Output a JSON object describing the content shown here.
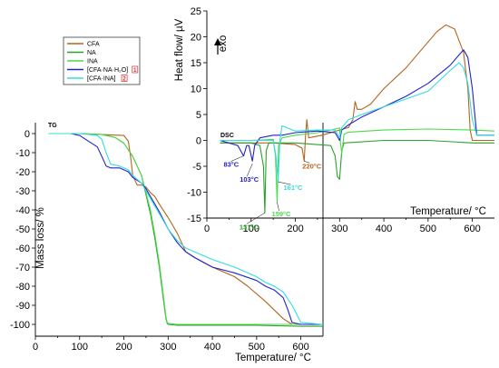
{
  "colors": {
    "CFA": "#b5651d",
    "NA": "#2ca02c",
    "INA": "#4dd94d",
    "CFA_NA_H2O": "#2222cc",
    "CFA_INA": "#33dddd",
    "marker_red": "#d62728"
  },
  "legend": {
    "items": [
      {
        "key": "CFA",
        "label": "CFA"
      },
      {
        "key": "NA",
        "label": "NA"
      },
      {
        "key": "INA",
        "label": "INA"
      },
      {
        "key": "CFA_NA_H2O",
        "label": "[CFA·NA·H₂O]",
        "badge": "1"
      },
      {
        "key": "CFA_INA",
        "label": "[CFA·INA]",
        "badge": "2"
      }
    ]
  },
  "chart_data": [
    {
      "type": "line",
      "panel": "TG",
      "tag": "TG",
      "xlabel": "Temperature/ °C",
      "ylabel": "Mass loss/ %",
      "xlim": [
        0,
        650
      ],
      "ylim": [
        -103,
        3
      ],
      "xticks": [
        0,
        100,
        200,
        300,
        400,
        500,
        600
      ],
      "yticks": [
        0,
        -10,
        -20,
        -30,
        -40,
        -50,
        -60,
        -70,
        -80,
        -90,
        -100
      ],
      "series": [
        {
          "name": "CFA",
          "key": "CFA",
          "x": [
            30,
            100,
            200,
            210,
            215,
            220,
            230,
            240,
            250,
            260,
            270,
            280,
            300,
            320,
            340,
            360,
            400,
            450,
            480,
            520,
            560,
            580,
            600,
            650
          ],
          "y": [
            0,
            0,
            -1,
            -4,
            -12,
            -22,
            -27,
            -27,
            -28,
            -31,
            -33,
            -37,
            -44,
            -52,
            -62,
            -65,
            -70,
            -75,
            -80,
            -88,
            -97,
            -100,
            -100,
            -100
          ]
        },
        {
          "name": "NA",
          "key": "NA",
          "x": [
            30,
            100,
            150,
            180,
            200,
            220,
            240,
            260,
            270,
            280,
            290,
            295,
            298,
            300,
            320,
            400,
            500,
            600,
            650
          ],
          "y": [
            0,
            0,
            -0.5,
            -2,
            -5,
            -12,
            -22,
            -42,
            -55,
            -70,
            -88,
            -97,
            -99.5,
            -100,
            -100.5,
            -100.5,
            -100.5,
            -101,
            -101
          ]
        },
        {
          "name": "INA",
          "key": "INA",
          "x": [
            30,
            100,
            150,
            180,
            200,
            220,
            240,
            260,
            270,
            280,
            290,
            295,
            298,
            300,
            320,
            400,
            500,
            600,
            650
          ],
          "y": [
            0,
            0,
            -0.5,
            -2,
            -5,
            -12,
            -22,
            -40,
            -53,
            -68,
            -86,
            -96,
            -99,
            -99.5,
            -100,
            -100,
            -100,
            -100,
            -100
          ]
        },
        {
          "name": "[CFA·NA·H₂O]",
          "key": "CFA_NA_H2O",
          "x": [
            30,
            80,
            100,
            120,
            140,
            150,
            160,
            170,
            190,
            210,
            220,
            240,
            250,
            260,
            270,
            280,
            300,
            320,
            340,
            360,
            400,
            450,
            500,
            520,
            540,
            560,
            570,
            580,
            600,
            650
          ],
          "y": [
            0,
            0,
            -1,
            -4,
            -7,
            -12,
            -17,
            -18,
            -18,
            -20,
            -23,
            -26,
            -29,
            -33,
            -37,
            -41,
            -50,
            -57,
            -62,
            -65,
            -70,
            -73,
            -77,
            -80,
            -82,
            -86,
            -92,
            -99,
            -100,
            -100
          ]
        },
        {
          "name": "[CFA·INA]",
          "key": "CFA_INA",
          "x": [
            30,
            100,
            140,
            150,
            160,
            170,
            190,
            210,
            220,
            240,
            250,
            260,
            270,
            280,
            300,
            320,
            340,
            360,
            400,
            450,
            500,
            520,
            540,
            560,
            580,
            600,
            650
          ],
          "y": [
            0,
            0,
            -1,
            -3,
            -10,
            -16,
            -17,
            -19,
            -22,
            -26,
            -30,
            -34,
            -38,
            -42,
            -50,
            -56,
            -60,
            -62,
            -66,
            -70,
            -75,
            -78,
            -80,
            -83,
            -90,
            -99,
            -100
          ]
        }
      ]
    },
    {
      "type": "line",
      "panel": "DSC",
      "tag": "DSC",
      "xlabel": "Temperature/ °C",
      "ylabel": "Heat flow/ µV",
      "exo_label": "exo",
      "xlim": [
        0,
        650
      ],
      "ylim": [
        -15,
        25
      ],
      "xticks": [
        0,
        100,
        200,
        300,
        400,
        500,
        600
      ],
      "yticks": [
        -15,
        -10,
        -5,
        0,
        5,
        10,
        15,
        20,
        25
      ],
      "annotations": [
        {
          "text": "83°C",
          "key": "CFA_NA_H2O",
          "x": 83,
          "y": -3
        },
        {
          "text": "103°C",
          "key": "CFA_NA_H2O",
          "x": 103,
          "y": -4.5
        },
        {
          "text": "131°C",
          "key": "NA",
          "x": 131,
          "y": -14
        },
        {
          "text": "159°C",
          "key": "INA",
          "x": 159,
          "y": -12
        },
        {
          "text": "161°C",
          "key": "CFA_INA",
          "x": 161,
          "y": -8
        },
        {
          "text": "220°C",
          "key": "CFA",
          "x": 220,
          "y": -4
        }
      ],
      "series": [
        {
          "name": "CFA",
          "key": "CFA",
          "x": [
            30,
            150,
            200,
            215,
            220,
            223,
            226,
            230,
            260,
            300,
            320,
            330,
            335,
            340,
            350,
            370,
            400,
            450,
            500,
            520,
            540,
            560,
            580,
            590,
            595,
            600,
            610,
            650
          ],
          "y": [
            -0.5,
            -0.5,
            -0.8,
            -1.5,
            -4,
            1,
            4,
            0.5,
            1,
            2,
            2.5,
            4,
            7.5,
            6,
            6,
            7,
            10,
            14,
            19,
            21,
            22.3,
            21.5,
            17,
            10,
            2,
            0,
            0,
            0
          ]
        },
        {
          "name": "NA",
          "key": "NA",
          "x": [
            30,
            100,
            120,
            128,
            131,
            134,
            140,
            200,
            280,
            290,
            295,
            300,
            305,
            310,
            400,
            500,
            600,
            650
          ],
          "y": [
            -0.5,
            -0.5,
            -1,
            -5,
            -14,
            -2,
            -0.5,
            -0.5,
            -1,
            -3,
            -7,
            -7.5,
            -2,
            -0.5,
            0,
            0,
            -0.5,
            -0.5
          ]
        },
        {
          "name": "INA",
          "key": "INA",
          "x": [
            30,
            100,
            150,
            155,
            159,
            162,
            170,
            200,
            250,
            280,
            295,
            300,
            302,
            305,
            310,
            320,
            400,
            500,
            600,
            650
          ],
          "y": [
            0,
            0,
            0.2,
            -3,
            -12,
            -1,
            0.5,
            1,
            1.5,
            2,
            2.3,
            2.4,
            -0.5,
            -2.5,
            1.2,
            1.6,
            2,
            2.2,
            2.0,
            1.8
          ]
        },
        {
          "name": "[CFA·NA·H₂O]",
          "key": "CFA_NA_H2O",
          "x": [
            30,
            70,
            83,
            90,
            95,
            103,
            108,
            120,
            150,
            170,
            200,
            250,
            290,
            300,
            305,
            320,
            350,
            400,
            450,
            500,
            550,
            570,
            580,
            590,
            600,
            610,
            650
          ],
          "y": [
            0,
            -1,
            -3,
            -1,
            -1,
            -4,
            -1,
            0.5,
            1,
            1,
            1.5,
            1.8,
            1.5,
            0,
            2,
            3,
            4.5,
            6.5,
            8.5,
            11,
            14.5,
            16.5,
            17.5,
            16,
            10,
            1,
            1
          ]
        },
        {
          "name": "[CFA·INA]",
          "key": "CFA_INA",
          "x": [
            30,
            100,
            150,
            156,
            161,
            165,
            170,
            200,
            250,
            290,
            300,
            305,
            320,
            350,
            400,
            450,
            500,
            550,
            570,
            580,
            590,
            600,
            610,
            650
          ],
          "y": [
            0,
            0,
            0,
            -3,
            -8,
            0,
            2.8,
            1.8,
            2,
            2,
            0.5,
            2.5,
            4,
            5,
            6.5,
            8,
            9.5,
            13.5,
            15,
            14,
            11,
            4,
            1,
            1
          ]
        }
      ]
    }
  ]
}
